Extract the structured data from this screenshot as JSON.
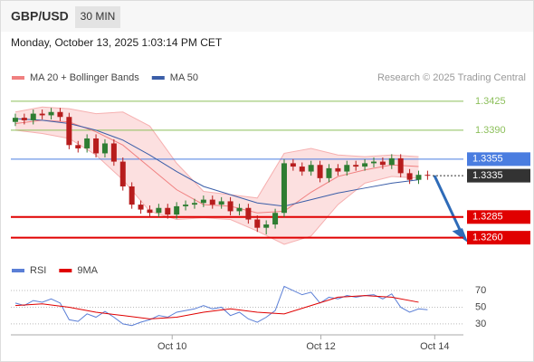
{
  "header": {
    "symbol": "GBP/USD",
    "interval": "30 MIN",
    "timestamp": "Monday, October 13, 2025 1:03:14 PM CET"
  },
  "chart_data": {
    "type": "candlestick",
    "legend": [
      {
        "name": "MA 20 + Bollinger Bands",
        "color": "#f08080"
      },
      {
        "name": "MA 50",
        "color": "#3b5ea8"
      }
    ],
    "source": "Research © 2025 Trading Central",
    "up_color": "#2e7d32",
    "down_color": "#b71c1c",
    "xlim": [
      -0.5,
      50
    ],
    "ylim": [
      1.3241,
      1.3438
    ],
    "xticks": [
      {
        "value": 17.5,
        "label": "Oct 10"
      },
      {
        "value": 34.1,
        "label": "Oct 12"
      },
      {
        "value": 46.8,
        "label": "Oct 14"
      }
    ],
    "x": [
      0,
      1,
      2,
      3,
      4,
      5,
      6,
      7,
      8,
      9,
      10,
      11,
      12,
      13,
      14,
      15,
      16,
      17,
      18,
      19,
      20,
      21,
      22,
      23,
      24,
      25,
      26,
      27,
      28,
      29,
      30,
      31,
      32,
      33,
      34,
      35,
      36,
      37,
      38,
      39,
      40,
      41,
      42,
      43,
      44,
      45,
      46
    ],
    "open": [
      1.34,
      1.3405,
      1.3402,
      1.341,
      1.3408,
      1.3412,
      1.3406,
      1.3372,
      1.3368,
      1.338,
      1.3362,
      1.3374,
      1.3352,
      1.3322,
      1.33,
      1.3294,
      1.329,
      1.3296,
      1.3288,
      1.3298,
      1.33,
      1.3302,
      1.3306,
      1.33,
      1.3304,
      1.3292,
      1.3296,
      1.3282,
      1.3272,
      1.3276,
      1.329,
      1.335,
      1.3346,
      1.334,
      1.3348,
      1.3332,
      1.3344,
      1.334,
      1.3348,
      1.3346,
      1.335,
      1.3352,
      1.3348,
      1.3356,
      1.3338,
      1.333,
      1.3336
    ],
    "high": [
      1.341,
      1.341,
      1.3415,
      1.3415,
      1.3417,
      1.3417,
      1.3411,
      1.3377,
      1.3385,
      1.3385,
      1.3379,
      1.3379,
      1.3357,
      1.3327,
      1.3305,
      1.3299,
      1.3301,
      1.3301,
      1.3303,
      1.3305,
      1.3307,
      1.3311,
      1.3311,
      1.3309,
      1.3309,
      1.3301,
      1.3301,
      1.3287,
      1.3281,
      1.3295,
      1.3355,
      1.3355,
      1.3351,
      1.3353,
      1.3353,
      1.3349,
      1.3349,
      1.3353,
      1.3353,
      1.3355,
      1.3357,
      1.3357,
      1.3361,
      1.3361,
      1.3343,
      1.3341,
      1.3341
    ],
    "low": [
      1.3395,
      1.3397,
      1.3397,
      1.3403,
      1.3403,
      1.3401,
      1.3367,
      1.3363,
      1.3363,
      1.3357,
      1.3357,
      1.3347,
      1.3317,
      1.3295,
      1.3289,
      1.3285,
      1.3285,
      1.3283,
      1.3283,
      1.3293,
      1.3295,
      1.3297,
      1.3295,
      1.3295,
      1.3287,
      1.3287,
      1.3277,
      1.3267,
      1.3264,
      1.3271,
      1.3285,
      1.3341,
      1.3335,
      1.3335,
      1.3327,
      1.3327,
      1.3335,
      1.3335,
      1.3341,
      1.3341,
      1.3345,
      1.3343,
      1.3343,
      1.3333,
      1.3325,
      1.3325,
      1.333
    ],
    "close": [
      1.3405,
      1.3402,
      1.341,
      1.3408,
      1.3412,
      1.3406,
      1.3372,
      1.3368,
      1.338,
      1.3362,
      1.3374,
      1.3352,
      1.3322,
      1.33,
      1.3294,
      1.329,
      1.3296,
      1.3288,
      1.3298,
      1.33,
      1.3302,
      1.3306,
      1.33,
      1.3304,
      1.3292,
      1.3296,
      1.3282,
      1.3272,
      1.3276,
      1.329,
      1.335,
      1.3346,
      1.334,
      1.3348,
      1.3332,
      1.3344,
      1.334,
      1.3348,
      1.3346,
      1.335,
      1.3352,
      1.3348,
      1.3356,
      1.3338,
      1.333,
      1.3336,
      1.3335
    ],
    "overlays": {
      "x": [
        0,
        3,
        6,
        9,
        12,
        15,
        18,
        21,
        24,
        27,
        30,
        33,
        36,
        39,
        42,
        45
      ],
      "ma20": [
        1.3398,
        1.3402,
        1.34,
        1.3388,
        1.3372,
        1.3345,
        1.3318,
        1.33,
        1.3298,
        1.329,
        1.3292,
        1.3315,
        1.3334,
        1.3342,
        1.3348,
        1.3346
      ],
      "ma50": [
        1.3404,
        1.3402,
        1.3398,
        1.339,
        1.3378,
        1.336,
        1.334,
        1.3322,
        1.3312,
        1.3302,
        1.3298,
        1.3306,
        1.3314,
        1.332,
        1.3326,
        1.333
      ],
      "bb_upper": [
        1.3412,
        1.3418,
        1.3416,
        1.341,
        1.3412,
        1.3395,
        1.335,
        1.3316,
        1.3312,
        1.3308,
        1.3362,
        1.3368,
        1.336,
        1.3358,
        1.336,
        1.3358
      ],
      "bb_lower": [
        1.339,
        1.3386,
        1.338,
        1.336,
        1.333,
        1.3292,
        1.3282,
        1.3284,
        1.3282,
        1.3268,
        1.3252,
        1.3262,
        1.33,
        1.3326,
        1.3334,
        1.3332
      ]
    },
    "levels": [
      {
        "value": 1.3425,
        "label": "1.3425",
        "color": "#8cbf5a",
        "boxed": false,
        "dotted": false
      },
      {
        "value": 1.339,
        "label": "1.3390",
        "color": "#8cbf5a",
        "boxed": false,
        "dotted": false
      },
      {
        "value": 1.3355,
        "label": "1.3355",
        "color": "#4a7de0",
        "boxed": true,
        "dotted": false
      },
      {
        "value": 1.3335,
        "label": "1.3335",
        "color": "#333333",
        "boxed": true,
        "dotted": true
      },
      {
        "value": 1.3285,
        "label": "1.3285",
        "color": "#e00000",
        "boxed": true,
        "dotted": false
      },
      {
        "value": 1.326,
        "label": "1.3260",
        "color": "#e00000",
        "boxed": true,
        "dotted": false
      }
    ],
    "rsi": {
      "legend": [
        {
          "name": "RSI",
          "color": "#5b7fd6"
        },
        {
          "name": "9MA",
          "color": "#e00000"
        }
      ],
      "ylim": [
        19,
        82
      ],
      "yticks": [
        30,
        50,
        70
      ],
      "values": [
        55,
        52,
        58,
        56,
        60,
        55,
        35,
        33,
        42,
        38,
        45,
        38,
        30,
        28,
        32,
        35,
        40,
        38,
        44,
        46,
        48,
        52,
        48,
        50,
        40,
        44,
        36,
        32,
        38,
        46,
        75,
        70,
        65,
        68,
        55,
        62,
        60,
        64,
        62,
        64,
        65,
        60,
        66,
        50,
        44,
        48,
        47
      ],
      "ma_x": [
        0,
        3,
        6,
        9,
        12,
        15,
        18,
        21,
        24,
        27,
        30,
        33,
        36,
        39,
        42,
        45
      ],
      "ma": [
        52,
        54,
        50,
        44,
        40,
        36,
        38,
        44,
        48,
        44,
        42,
        52,
        62,
        64,
        62,
        56
      ]
    }
  }
}
